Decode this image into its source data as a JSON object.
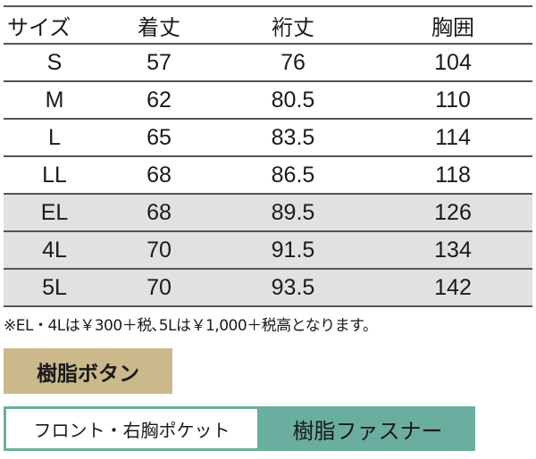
{
  "table": {
    "headers": [
      "サイズ",
      "着丈",
      "裄丈",
      "胸囲"
    ],
    "rows": [
      [
        "S",
        "57",
        "76",
        "104"
      ],
      [
        "M",
        "62",
        "80.5",
        "110"
      ],
      [
        "L",
        "65",
        "83.5",
        "114"
      ],
      [
        "LL",
        "68",
        "86.5",
        "118"
      ],
      [
        "EL",
        "68",
        "89.5",
        "126"
      ],
      [
        "4L",
        "70",
        "91.5",
        "134"
      ],
      [
        "5L",
        "70",
        "93.5",
        "142"
      ]
    ],
    "highlighted_rows": [
      "EL",
      "4L",
      "5L"
    ]
  },
  "note": "※EL・4Lは￥300＋税､5Lは￥1,000＋税高となります。",
  "labels": {
    "button_type": "樹脂ボタン",
    "pocket": "フロント・右胸ポケット",
    "fastener": "樹脂ファスナー"
  },
  "colors": {
    "button_label": "#cbb98c",
    "fastener_label": "#6aae9f",
    "highlight_row": "#e1e1e1"
  }
}
